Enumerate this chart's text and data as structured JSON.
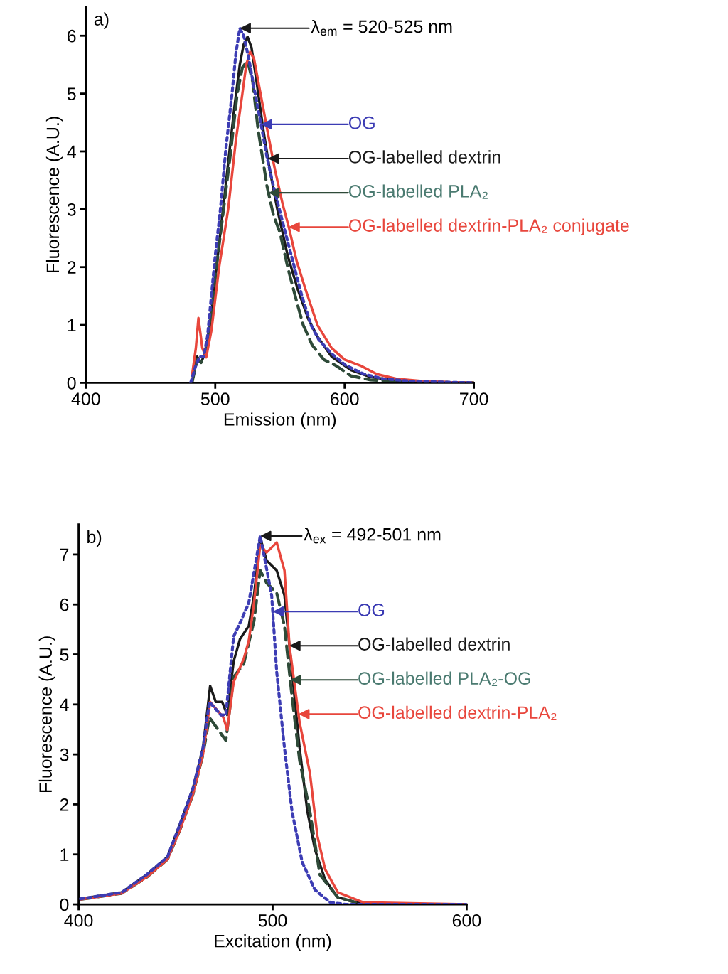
{
  "chart_data": [
    {
      "type": "line",
      "xlabel": "Emission (nm)",
      "ylabel": "Fluorescence (A.U.)",
      "xlim": [
        400,
        700
      ],
      "ylim": [
        0,
        6.5
      ],
      "xticks": [
        400,
        500,
        600,
        700
      ],
      "yticks": [
        0,
        1,
        2,
        3,
        4,
        5,
        6
      ],
      "legend": "right",
      "annotations": [
        "a)",
        "λ$_{em}$ = 520-525 nm"
      ],
      "series": [
        {
          "name": "OG",
          "color": "#3c3cb4",
          "line_style": "dotted",
          "x": [
            481,
            485,
            488,
            491,
            494,
            500,
            504,
            508,
            513,
            516,
            519,
            522,
            526,
            530,
            536,
            540,
            545,
            553,
            560,
            567,
            574,
            580,
            590,
            601,
            615,
            630,
            650,
            680,
            700
          ],
          "values": [
            0,
            0.3,
            0.45,
            0.45,
            0.8,
            2.2,
            3.0,
            4.0,
            5.0,
            5.7,
            6.13,
            6.0,
            5.6,
            5.1,
            4.4,
            3.9,
            3.4,
            2.7,
            2.1,
            1.5,
            1.0,
            0.75,
            0.5,
            0.3,
            0.15,
            0.07,
            0.03,
            0.01,
            0
          ]
        },
        {
          "name": "OG-labelled dextrin",
          "color": "#1a1a1a",
          "line_style": "solid",
          "x": [
            482,
            486,
            489,
            492,
            496,
            502,
            506,
            510,
            515,
            519,
            522,
            525,
            528,
            532,
            537,
            542,
            548,
            556,
            564,
            572,
            579,
            590,
            605,
            620,
            640,
            670,
            700
          ],
          "values": [
            0,
            0.45,
            0.35,
            0.5,
            1.0,
            2.2,
            3.0,
            3.8,
            4.8,
            5.5,
            5.85,
            5.98,
            5.8,
            5.2,
            4.4,
            3.7,
            3.0,
            2.2,
            1.6,
            1.1,
            0.8,
            0.45,
            0.22,
            0.1,
            0.04,
            0.01,
            0
          ]
        },
        {
          "name": "OG-labelled PLA₂",
          "color": "#2e4a38",
          "line_style": "dashed",
          "x": [
            482,
            486,
            489,
            492,
            496,
            502,
            507,
            512,
            517,
            521,
            525,
            529,
            533,
            540,
            545,
            550,
            556,
            563,
            568,
            575,
            584,
            593,
            605,
            620,
            640,
            670,
            700
          ],
          "values": [
            0,
            0.4,
            0.35,
            0.5,
            1.0,
            2.2,
            3.1,
            4.0,
            5.0,
            5.45,
            5.57,
            5.2,
            4.4,
            3.4,
            2.9,
            2.6,
            2.0,
            1.4,
            1.0,
            0.65,
            0.4,
            0.3,
            0.12,
            0.05,
            0.02,
            0.01,
            0
          ]
        },
        {
          "name": "OG-labelled dextrin-PLA₂ conjugate",
          "color": "#e8463c",
          "line_style": "solid",
          "x": [
            482,
            485,
            487,
            490,
            493,
            497,
            503,
            510,
            516,
            521,
            524,
            527,
            530,
            535,
            540,
            546,
            552,
            557,
            563,
            570,
            579,
            590,
            600,
            612,
            625,
            640,
            660,
            680,
            700
          ],
          "values": [
            0.12,
            0.6,
            1.12,
            0.6,
            0.44,
            0.9,
            2.0,
            3.0,
            4.2,
            5.0,
            5.5,
            5.72,
            5.6,
            5.0,
            4.4,
            3.7,
            3.1,
            2.68,
            2.1,
            1.6,
            1.0,
            0.6,
            0.4,
            0.3,
            0.15,
            0.07,
            0.03,
            0.01,
            0
          ]
        }
      ]
    },
    {
      "type": "line",
      "xlabel": "Excitation (nm)",
      "ylabel": "Fluorescence (A.U.)",
      "xlim": [
        400,
        600
      ],
      "ylim": [
        0,
        7.6
      ],
      "xticks": [
        400,
        500,
        600
      ],
      "yticks": [
        0,
        1,
        2,
        3,
        4,
        5,
        6,
        7
      ],
      "legend": "right",
      "annotations": [
        "b)",
        "λ$_{ex}$ = 492-501 nm"
      ],
      "series": [
        {
          "name": "OG",
          "color": "#3c3cb4",
          "line_style": "dotted",
          "x": [
            401,
            422.2,
            435.3,
            445.8,
            452.3,
            458.9,
            464.1,
            467.4,
            473.3,
            475.9,
            479.9,
            482.5,
            487.7,
            493.6,
            495.6,
            499.5,
            502.1,
            506.1,
            510,
            515.2,
            521.8,
            529.7,
            537.5,
            600
          ],
          "values": [
            0.11,
            0.24,
            0.6,
            0.95,
            1.61,
            2.32,
            3.13,
            4.05,
            3.79,
            3.79,
            5.36,
            5.57,
            6.03,
            7.37,
            6.98,
            6.18,
            4.65,
            3.13,
            1.86,
            0.85,
            0.29,
            0.04,
            0,
            0
          ]
        },
        {
          "name": "OG-labelled dextrin",
          "color": "#1a1a1a",
          "line_style": "solid",
          "x": [
            401,
            422.2,
            435.3,
            445.8,
            452.3,
            458.9,
            464.1,
            467.8,
            470.7,
            474,
            476.6,
            479.9,
            483.2,
            487.7,
            490.4,
            493.6,
            496.9,
            502.1,
            506.1,
            510,
            513.9,
            517.9,
            521.8,
            527.1,
            533.6,
            542.8,
            566.4,
            600
          ],
          "values": [
            0.11,
            0.24,
            0.6,
            0.95,
            1.61,
            2.32,
            3.13,
            4.37,
            4.05,
            4.05,
            3.79,
            4.86,
            5.31,
            5.57,
            6.18,
            7.34,
            6.88,
            6.68,
            6.18,
            4.65,
            3.13,
            1.86,
            1.1,
            0.49,
            0.14,
            0.04,
            0,
            0
          ]
        },
        {
          "name": "OG-labelled PLA₂-OG",
          "color": "#2e4a38",
          "line_style": "dashed",
          "x": [
            401,
            422.2,
            435.3,
            445.8,
            452.3,
            458.9,
            464.1,
            467.4,
            475.9,
            479.9,
            485.1,
            490.4,
            493.6,
            496.9,
            502.1,
            506.1,
            510,
            513.9,
            519.2,
            524.4,
            533.6,
            542.8,
            566.4,
            600
          ],
          "values": [
            0.1,
            0.22,
            0.55,
            0.9,
            1.5,
            2.2,
            3.0,
            3.74,
            3.28,
            4.55,
            4.81,
            5.67,
            6.68,
            6.43,
            6.23,
            5.57,
            4.15,
            2.88,
            1.86,
            0.59,
            0.14,
            0.04,
            0,
            0
          ]
        },
        {
          "name": "OG-labelled dextrin-PLA₂",
          "color": "#e8463c",
          "line_style": "solid",
          "x": [
            401,
            422.2,
            435.3,
            445.8,
            452.3,
            458.9,
            464.1,
            467.8,
            474.6,
            476.6,
            479.9,
            485.1,
            487.7,
            490.4,
            493.6,
            496.9,
            502.1,
            506.1,
            508.7,
            513.9,
            519.2,
            523.1,
            527.1,
            533.6,
            546.7,
            600
          ],
          "values": [
            0.1,
            0.22,
            0.55,
            0.9,
            1.5,
            2.2,
            3.0,
            4.05,
            3.74,
            3.49,
            4.45,
            4.91,
            5.27,
            6.03,
            7.19,
            7.04,
            7.24,
            6.68,
            5.16,
            3.64,
            2.63,
            1.36,
            0.7,
            0.24,
            0.04,
            0
          ]
        }
      ]
    }
  ]
}
